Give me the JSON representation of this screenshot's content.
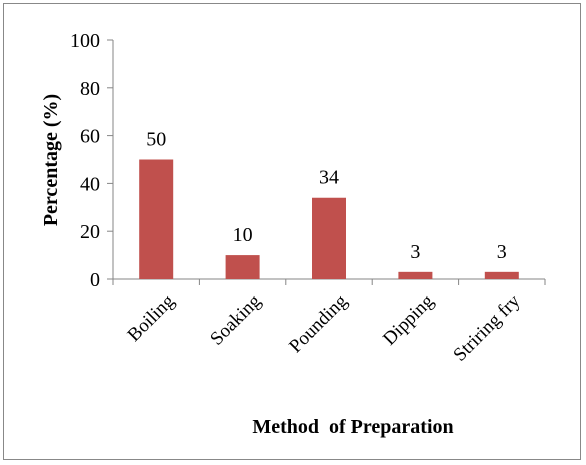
{
  "chart_data": {
    "type": "bar",
    "title": "",
    "xlabel": "Method  of Preparation",
    "ylabel": "Percentage (%)",
    "categories": [
      "Boiling",
      "Soaking",
      "Pounding",
      "Dipping",
      "Striring fry"
    ],
    "values": [
      50,
      10,
      34,
      3,
      3
    ],
    "data_labels": [
      "50",
      "10",
      "34",
      "3",
      "3"
    ],
    "ylim": [
      0,
      100
    ],
    "yticks": [
      0,
      20,
      40,
      60,
      80,
      100
    ],
    "grid": false,
    "legend": "none",
    "bar_color": "#c0504d"
  }
}
